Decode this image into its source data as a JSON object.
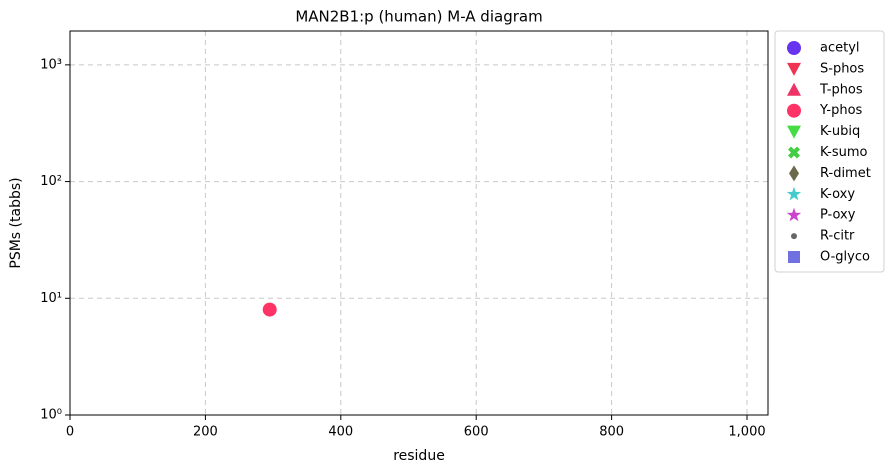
{
  "chart_data": {
    "type": "scatter",
    "title": "MAN2B1:p (human) M-A diagram",
    "x_label": "residue",
    "y_label": "PSMs (tabbs)",
    "xlim": [
      0,
      1031
    ],
    "xticks": [
      0,
      200,
      400,
      600,
      800,
      {
        "value": 1000,
        "label": "1,000"
      }
    ],
    "ylim": [
      1,
      1950
    ],
    "y_log": true,
    "yticks": [
      {
        "value": 1,
        "label": "10⁰"
      },
      {
        "value": 10,
        "label": "10¹"
      },
      {
        "value": 100,
        "label": "10²"
      },
      {
        "value": 1000,
        "label": "10³"
      }
    ],
    "grid": true,
    "legend": "outside-right",
    "series": [
      {
        "name": "acetyl",
        "color": "#6633ee",
        "marker": "circle",
        "x": [],
        "values": []
      },
      {
        "name": "S-phos",
        "color": "#ee3355",
        "marker": "triangle-down",
        "x": [],
        "values": []
      },
      {
        "name": "T-phos",
        "color": "#ee3366",
        "marker": "triangle-up",
        "x": [],
        "values": []
      },
      {
        "name": "Y-phos",
        "color": "#ff3366",
        "marker": "circle",
        "x": [
          295
        ],
        "values": [
          8
        ]
      },
      {
        "name": "K-ubiq",
        "color": "#44dd44",
        "marker": "triangle-down",
        "x": [],
        "values": []
      },
      {
        "name": "K-sumo",
        "color": "#44cc44",
        "marker": "x",
        "x": [],
        "values": []
      },
      {
        "name": "R-dimet",
        "color": "#6b6b4b",
        "marker": "thin-diamond",
        "x": [],
        "values": []
      },
      {
        "name": "K-oxy",
        "color": "#44cccc",
        "marker": "star",
        "x": [],
        "values": []
      },
      {
        "name": "P-oxy",
        "color": "#cc44cc",
        "marker": "star",
        "x": [],
        "values": []
      },
      {
        "name": "R-citr",
        "color": "#666666",
        "marker": "dot",
        "x": [],
        "values": []
      },
      {
        "name": "O-glyco",
        "color": "#7070e0",
        "marker": "square",
        "x": [],
        "values": []
      }
    ]
  }
}
